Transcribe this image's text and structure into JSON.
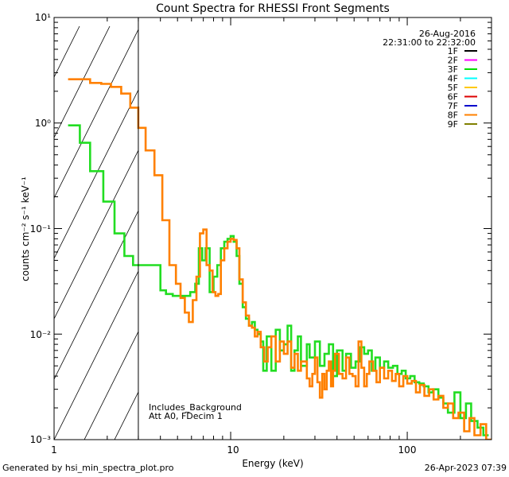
{
  "chart_data": {
    "type": "line",
    "title": "Count Spectra for RHESSI Front Segments",
    "xlabel": "Energy (keV)",
    "ylabel": "counts cm⁻² s⁻¹ keV⁻¹",
    "xscale": "log",
    "yscale": "log",
    "xlim": [
      1,
      300
    ],
    "ylim": [
      0.001,
      10
    ],
    "x_ticks": [
      "1",
      "10",
      "100"
    ],
    "y_ticks": [
      "10⁻³",
      "10⁻²",
      "10⁻¹",
      "10⁰",
      "10¹"
    ],
    "date": "26-Aug-2016",
    "time_range": "22:31:00 to 22:32:00",
    "hatched_region_keV": [
      1,
      3
    ],
    "annotations": [
      "Includes_Background",
      "Att A0, FDecim 1"
    ],
    "legend": [
      {
        "name": "1F",
        "color": "#000000"
      },
      {
        "name": "2F",
        "color": "#ff00ff"
      },
      {
        "name": "3F",
        "color": "#00dd00"
      },
      {
        "name": "4F",
        "color": "#00ffff"
      },
      {
        "name": "5F",
        "color": "#ffc800"
      },
      {
        "name": "6F",
        "color": "#dd0000"
      },
      {
        "name": "7F",
        "color": "#0000cc"
      },
      {
        "name": "8F",
        "color": "#ff8000"
      },
      {
        "name": "9F",
        "color": "#808000"
      }
    ],
    "series": [
      {
        "name": "3F",
        "color": "#22dd22",
        "steps": [
          [
            1.2,
            0.95
          ],
          [
            1.4,
            0.65
          ],
          [
            1.6,
            0.35
          ],
          [
            1.9,
            0.18
          ],
          [
            2.2,
            0.09
          ],
          [
            2.5,
            0.055
          ],
          [
            2.8,
            0.045
          ],
          [
            3.2,
            0.045
          ],
          [
            3.6,
            0.045
          ],
          [
            4.0,
            0.026
          ],
          [
            4.3,
            0.024
          ],
          [
            4.7,
            0.023
          ],
          [
            5.1,
            0.023
          ],
          [
            5.5,
            0.023
          ],
          [
            5.9,
            0.025
          ],
          [
            6.3,
            0.03
          ],
          [
            6.6,
            0.065
          ],
          [
            6.9,
            0.05
          ],
          [
            7.2,
            0.065
          ],
          [
            7.6,
            0.025
          ],
          [
            8.0,
            0.035
          ],
          [
            8.4,
            0.045
          ],
          [
            8.8,
            0.065
          ],
          [
            9.2,
            0.075
          ],
          [
            9.6,
            0.08
          ],
          [
            10.0,
            0.085
          ],
          [
            10.4,
            0.075
          ],
          [
            10.8,
            0.055
          ],
          [
            11.2,
            0.03
          ],
          [
            11.7,
            0.018
          ],
          [
            12.2,
            0.014
          ],
          [
            12.7,
            0.012
          ],
          [
            13.2,
            0.013
          ],
          [
            13.7,
            0.011
          ],
          [
            14.2,
            0.01
          ],
          [
            14.8,
            0.0085
          ],
          [
            15.3,
            0.0045
          ],
          [
            16,
            0.0095
          ],
          [
            17,
            0.0045
          ],
          [
            18,
            0.011
          ],
          [
            19,
            0.007
          ],
          [
            20,
            0.008
          ],
          [
            21,
            0.012
          ],
          [
            22,
            0.0045
          ],
          [
            23,
            0.007
          ],
          [
            24,
            0.0095
          ],
          [
            25,
            0.005
          ],
          [
            27,
            0.008
          ],
          [
            28,
            0.006
          ],
          [
            30,
            0.0085
          ],
          [
            32,
            0.005
          ],
          [
            34,
            0.0065
          ],
          [
            36,
            0.008
          ],
          [
            38,
            0.004
          ],
          [
            40,
            0.007
          ],
          [
            43,
            0.0045
          ],
          [
            45,
            0.0065
          ],
          [
            48,
            0.0048
          ],
          [
            51,
            0.0055
          ],
          [
            54,
            0.0075
          ],
          [
            57,
            0.0065
          ],
          [
            60,
            0.007
          ],
          [
            63,
            0.0045
          ],
          [
            66,
            0.006
          ],
          [
            70,
            0.0048
          ],
          [
            74,
            0.0055
          ],
          [
            78,
            0.0048
          ],
          [
            83,
            0.005
          ],
          [
            88,
            0.0042
          ],
          [
            93,
            0.0045
          ],
          [
            98,
            0.0038
          ],
          [
            104,
            0.004
          ],
          [
            110,
            0.0035
          ],
          [
            117,
            0.0034
          ],
          [
            124,
            0.0032
          ],
          [
            132,
            0.0028
          ],
          [
            140,
            0.003
          ],
          [
            150,
            0.0025
          ],
          [
            160,
            0.0022
          ],
          [
            170,
            0.0018
          ],
          [
            185,
            0.0028
          ],
          [
            200,
            0.0016
          ],
          [
            215,
            0.0022
          ],
          [
            230,
            0.0015
          ],
          [
            250,
            0.0013
          ],
          [
            270,
            0.0011
          ]
        ]
      },
      {
        "name": "8F",
        "color": "#ff8000",
        "steps": [
          [
            1.2,
            2.6
          ],
          [
            1.45,
            2.6
          ],
          [
            1.6,
            2.4
          ],
          [
            1.85,
            2.35
          ],
          [
            2.1,
            2.2
          ],
          [
            2.4,
            1.9
          ],
          [
            2.7,
            1.4
          ],
          [
            3.0,
            0.9
          ],
          [
            3.3,
            0.55
          ],
          [
            3.7,
            0.32
          ],
          [
            4.1,
            0.12
          ],
          [
            4.5,
            0.045
          ],
          [
            4.9,
            0.03
          ],
          [
            5.2,
            0.022
          ],
          [
            5.5,
            0.016
          ],
          [
            5.8,
            0.013
          ],
          [
            6.1,
            0.021
          ],
          [
            6.4,
            0.035
          ],
          [
            6.7,
            0.09
          ],
          [
            7.0,
            0.098
          ],
          [
            7.3,
            0.045
          ],
          [
            7.6,
            0.04
          ],
          [
            7.9,
            0.025
          ],
          [
            8.2,
            0.023
          ],
          [
            8.5,
            0.024
          ],
          [
            8.8,
            0.05
          ],
          [
            9.2,
            0.065
          ],
          [
            9.6,
            0.075
          ],
          [
            10.0,
            0.08
          ],
          [
            10.4,
            0.078
          ],
          [
            10.8,
            0.065
          ],
          [
            11.2,
            0.033
          ],
          [
            11.7,
            0.02
          ],
          [
            12.2,
            0.015
          ],
          [
            12.7,
            0.012
          ],
          [
            13.2,
            0.0115
          ],
          [
            13.7,
            0.0095
          ],
          [
            14.2,
            0.0105
          ],
          [
            14.8,
            0.0075
          ],
          [
            15.5,
            0.0055
          ],
          [
            16.2,
            0.0075
          ],
          [
            17,
            0.0095
          ],
          [
            18,
            0.0055
          ],
          [
            19,
            0.0085
          ],
          [
            20,
            0.0065
          ],
          [
            21,
            0.0085
          ],
          [
            22,
            0.0048
          ],
          [
            23,
            0.0065
          ],
          [
            24,
            0.0045
          ],
          [
            25,
            0.0055
          ],
          [
            27,
            0.0038
          ],
          [
            28,
            0.0032
          ],
          [
            29,
            0.0042
          ],
          [
            30,
            0.006
          ],
          [
            31,
            0.0035
          ],
          [
            32,
            0.0025
          ],
          [
            33,
            0.0042
          ],
          [
            34,
            0.003
          ],
          [
            35,
            0.0045
          ],
          [
            36,
            0.0055
          ],
          [
            37,
            0.0032
          ],
          [
            38,
            0.0045
          ],
          [
            39,
            0.0065
          ],
          [
            41,
            0.0042
          ],
          [
            43,
            0.0038
          ],
          [
            45,
            0.006
          ],
          [
            47,
            0.0042
          ],
          [
            49,
            0.004
          ],
          [
            51,
            0.0032
          ],
          [
            53,
            0.0085
          ],
          [
            55,
            0.0048
          ],
          [
            57,
            0.0032
          ],
          [
            59,
            0.0042
          ],
          [
            61,
            0.0055
          ],
          [
            64,
            0.0045
          ],
          [
            67,
            0.0035
          ],
          [
            70,
            0.0048
          ],
          [
            74,
            0.0038
          ],
          [
            78,
            0.0045
          ],
          [
            82,
            0.0036
          ],
          [
            86,
            0.0042
          ],
          [
            90,
            0.0032
          ],
          [
            95,
            0.004
          ],
          [
            100,
            0.0034
          ],
          [
            106,
            0.0036
          ],
          [
            112,
            0.0028
          ],
          [
            118,
            0.0033
          ],
          [
            125,
            0.0026
          ],
          [
            133,
            0.003
          ],
          [
            141,
            0.0024
          ],
          [
            150,
            0.0026
          ],
          [
            160,
            0.002
          ],
          [
            170,
            0.0022
          ],
          [
            182,
            0.0016
          ],
          [
            195,
            0.0018
          ],
          [
            210,
            0.0012
          ],
          [
            225,
            0.0016
          ],
          [
            240,
            0.0011
          ],
          [
            260,
            0.0014
          ],
          [
            280,
            0.001
          ]
        ]
      }
    ]
  },
  "footer": {
    "left": "Generated by hsi_min_spectra_plot.pro",
    "right": "26-Apr-2023 07:39"
  }
}
